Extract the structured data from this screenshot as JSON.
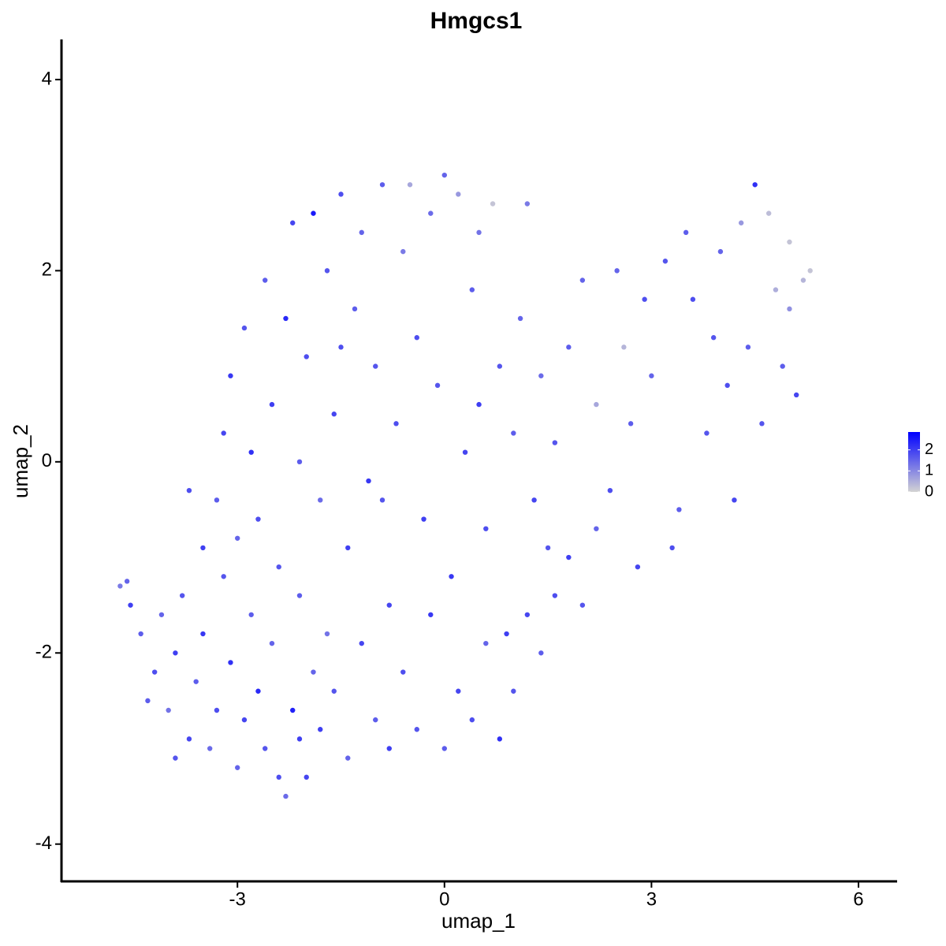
{
  "chart_data": {
    "type": "scatter",
    "title": "Hmgcs1",
    "x_label": "umap_1",
    "y_label": "umap_2",
    "xlim": [
      -5.55,
      6.56
    ],
    "ylim": [
      -4.39,
      4.42
    ],
    "xticks": [
      -3,
      0,
      3,
      6
    ],
    "yticks": [
      -4,
      -2,
      0,
      2,
      4
    ],
    "color_range": [
      "#d3d3d3",
      "#0000ff"
    ],
    "color_lim": [
      0,
      2.85
    ],
    "color_ticks": [
      0,
      1,
      2
    ],
    "x": [
      -4.7,
      -4.6,
      -4.55,
      -4.4,
      -4.2,
      -4.1,
      -4.0,
      -3.9,
      -3.8,
      -3.7,
      -3.6,
      -3.5,
      -3.4,
      -3.3,
      -3.2,
      -3.1,
      -3.0,
      -2.9,
      -2.8,
      -2.7,
      -2.6,
      -2.5,
      -2.4,
      -2.3,
      -2.2,
      -2.1,
      -2.0,
      -1.9,
      -1.8,
      -1.7,
      -3.7,
      -3.5,
      -3.3,
      -3.2,
      -3.1,
      -3.0,
      -2.9,
      -2.8,
      -2.7,
      -2.6,
      -2.5,
      -2.4,
      -2.3,
      -2.2,
      -2.1,
      -2.0,
      -1.9,
      -1.8,
      -1.7,
      -1.6,
      -1.5,
      -1.4,
      -1.3,
      -1.2,
      -1.1,
      -1.0,
      -0.9,
      -0.8,
      -0.7,
      -0.6,
      -0.5,
      -0.4,
      -0.3,
      -0.2,
      -0.1,
      0.0,
      0.1,
      0.2,
      0.3,
      0.4,
      0.5,
      0.6,
      0.7,
      0.8,
      0.9,
      1.0,
      1.1,
      1.2,
      1.3,
      1.4,
      -1.6,
      -1.4,
      -1.2,
      -1.0,
      -0.8,
      -0.6,
      -0.4,
      -0.2,
      0.0,
      0.2,
      0.4,
      0.6,
      0.8,
      1.0,
      1.2,
      1.4,
      1.6,
      1.8,
      2.0,
      2.2,
      1.6,
      1.8,
      2.0,
      2.2,
      2.4,
      2.6,
      2.8,
      3.0,
      3.2,
      3.4,
      3.6,
      3.8,
      4.0,
      4.2,
      4.4,
      4.5,
      4.6,
      4.7,
      4.8,
      4.9,
      5.0,
      5.1,
      5.2,
      5.3,
      4.3,
      3.9,
      3.5,
      2.9,
      2.5,
      3.3,
      -4.3,
      -3.9,
      -2.1,
      -1.5,
      -0.9,
      0.5,
      1.5,
      2.7,
      4.1,
      5.0
    ],
    "y": [
      -1.3,
      -1.25,
      -1.5,
      -1.8,
      -2.2,
      -1.6,
      -2.6,
      -2.0,
      -1.4,
      -2.9,
      -2.3,
      -1.8,
      -3.0,
      -2.6,
      -1.2,
      -2.1,
      -3.2,
      -2.7,
      -1.6,
      -2.4,
      -3.0,
      -1.9,
      -3.3,
      -3.5,
      -2.6,
      -1.4,
      -3.3,
      -2.2,
      -2.8,
      -1.8,
      -0.3,
      -0.9,
      -0.4,
      0.3,
      0.9,
      -0.8,
      1.4,
      0.1,
      -0.6,
      1.9,
      0.6,
      -1.1,
      1.5,
      2.5,
      0.0,
      1.1,
      2.6,
      -0.4,
      2.0,
      0.5,
      2.8,
      -0.9,
      1.6,
      2.4,
      -0.2,
      1.0,
      2.9,
      -1.5,
      0.4,
      2.2,
      2.9,
      1.3,
      -0.6,
      2.6,
      0.8,
      3.0,
      -1.2,
      2.8,
      0.1,
      1.8,
      2.4,
      -0.7,
      2.7,
      1.0,
      -1.8,
      0.3,
      1.5,
      2.7,
      -0.4,
      0.9,
      -2.4,
      -3.1,
      -1.9,
      -2.7,
      -3.0,
      -2.2,
      -2.8,
      -1.6,
      -3.0,
      -2.4,
      -2.7,
      -1.9,
      -2.9,
      -2.4,
      -1.6,
      -2.0,
      -1.4,
      -1.0,
      -1.5,
      -0.7,
      0.2,
      1.2,
      1.9,
      0.6,
      -0.3,
      1.2,
      -1.1,
      0.9,
      2.1,
      -0.5,
      1.7,
      0.3,
      2.2,
      -0.4,
      1.2,
      2.9,
      0.4,
      2.6,
      1.8,
      1.0,
      2.3,
      0.7,
      1.9,
      2.0,
      2.5,
      1.3,
      2.4,
      1.7,
      2.0,
      -0.9,
      -2.5,
      -3.1,
      -2.9,
      1.2,
      -0.4,
      0.6,
      -0.9,
      0.4,
      0.8,
      1.6
    ],
    "expression": [
      1.2,
      1.5,
      2,
      1.6,
      1.8,
      1.5,
      1.3,
      2,
      1.7,
      1.9,
      1.6,
      2.1,
      1.4,
      1.8,
      1.7,
      2.2,
      1.5,
      1.9,
      1.6,
      2.3,
      1.7,
      1.5,
      1.8,
      1.4,
      2.4,
      1.6,
      1.9,
      1.5,
      2.0,
      1.3,
      1.8,
      2.0,
      1.6,
      1.9,
      2.1,
      1.5,
      1.7,
      2.2,
      1.8,
      1.6,
      2.0,
      1.7,
      2.3,
      1.9,
      1.6,
      1.8,
      2.5,
      1.4,
      1.7,
      1.9,
      1.8,
      2.0,
      1.6,
      1.5,
      2.1,
      1.7,
      1.6,
      1.9,
      1.8,
      1.2,
      0.6,
      1.8,
      2.0,
      1.4,
      1.7,
      1.5,
      2.1,
      0.8,
      1.9,
      1.6,
      1.3,
      1.8,
      0.2,
      1.7,
      2.0,
      1.6,
      1.5,
      1.2,
      1.9,
      1.4,
      1.7,
      1.5,
      1.9,
      1.6,
      2.0,
      1.8,
      1.7,
      2.1,
      1.6,
      1.9,
      1.8,
      1.5,
      2.2,
      1.7,
      1.9,
      1.6,
      1.8,
      2.0,
      1.7,
      1.5,
      1.7,
      1.6,
      1.5,
      0.6,
      1.8,
      0.4,
      1.9,
      1.5,
      1.7,
      1.6,
      1.8,
      1.7,
      1.5,
      1.9,
      1.6,
      2.2,
      1.7,
      0.3,
      0.5,
      1.6,
      0.2,
      1.9,
      0.4,
      0.2,
      0.8,
      1.7,
      1.6,
      1.8,
      1.5,
      1.8,
      1.6,
      1.7,
      2.0,
      1.8,
      1.7,
      2.0,
      1.7,
      1.6,
      1.8,
      0.9
    ]
  }
}
